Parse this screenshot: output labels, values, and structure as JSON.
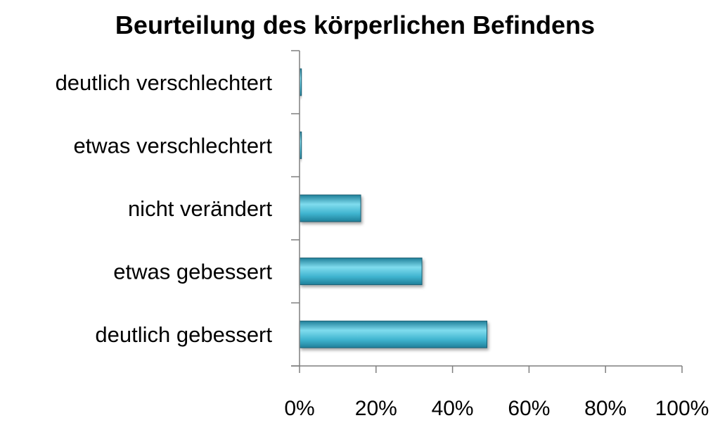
{
  "chart_data": {
    "type": "bar",
    "orientation": "horizontal",
    "title": "Beurteilung des körperlichen Befindens",
    "categories": [
      "deutlich verschlechtert",
      "etwas verschlechtert",
      "nicht verändert",
      "etwas gebessert",
      "deutlich gebessert"
    ],
    "values": [
      0.5,
      0.5,
      16,
      32,
      49
    ],
    "xlim": [
      0,
      100
    ],
    "xticks": [
      "0%",
      "20%",
      "40%",
      "60%",
      "80%",
      "100%"
    ],
    "xlabel": "",
    "ylabel": "",
    "grid": false,
    "legend": "none",
    "colors": {
      "bar_fill": "#3fb4cf",
      "bar_light": "#7fdcee",
      "bar_dark": "#1f7f99",
      "bar_edge": "#1a5f73",
      "axis": "#7f7f7f",
      "text": "#000000"
    }
  }
}
